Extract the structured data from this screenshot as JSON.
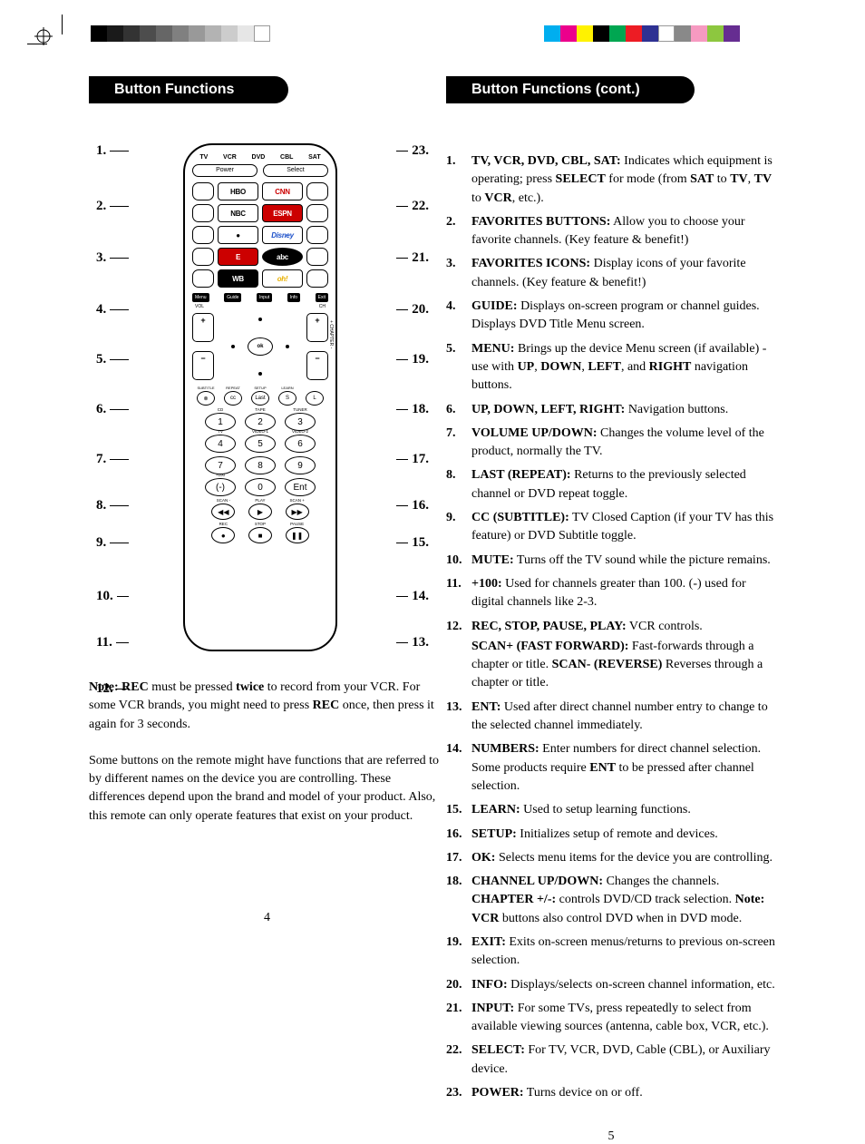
{
  "print": {
    "grayscale_swatches": [
      "#000000",
      "#1a1a1a",
      "#333333",
      "#4d4d4d",
      "#666666",
      "#808080",
      "#999999",
      "#b3b3b3",
      "#cccccc",
      "#e6e6e6",
      "#ffffff"
    ],
    "color_swatches": [
      "#00aeef",
      "#ec008c",
      "#fff200",
      "#000000",
      "#00a651",
      "#ed1c24",
      "#2e3192",
      "#ffffff",
      "#898989",
      "#f69ac1",
      "#8dc73f",
      "#662d91"
    ]
  },
  "left": {
    "header": "Button Functions",
    "page_num": "4",
    "callouts_left": [
      "1.",
      "2.",
      "3.",
      "4.",
      "5.",
      "6.",
      "7.",
      "8.",
      "9.",
      "10.",
      "11.",
      "12."
    ],
    "callout_left_gaps": [
      0,
      44,
      40,
      40,
      38,
      38,
      38,
      34,
      24,
      42,
      34,
      34,
      34
    ],
    "callouts_right": [
      "23.",
      "22.",
      "21.",
      "20.",
      "19.",
      "18.",
      "17.",
      "16.",
      "15.",
      "14.",
      "13."
    ],
    "callout_right_gaps": [
      0,
      44,
      40,
      40,
      38,
      38,
      38,
      34,
      24,
      42,
      34,
      34
    ],
    "remote": {
      "modes": [
        "TV",
        "VCR",
        "DVD",
        "CBL",
        "SAT"
      ],
      "power": "Power",
      "select": "Select",
      "fav_rows": [
        {
          "logo1_text": "HBO",
          "logo1_color": "#000000",
          "logo2_text": "CNN",
          "logo2_color": "#cc0000"
        },
        {
          "logo1_text": "NBC",
          "logo1_color": "#000000",
          "logo2_text": "ESPN",
          "logo2_color": "#cc0000",
          "logo2_bg": "#cc0000",
          "logo2_fg": "#fff"
        },
        {
          "logo1_text": "●",
          "logo1_color": "#000000",
          "logo2_text": "Disney",
          "logo2_color": "#1a4fc9",
          "logo2_style": "italic"
        },
        {
          "logo1_text": "E",
          "logo1_color": "#cc0000",
          "logo1_bg": "#cc0000",
          "logo1_fg": "#fff",
          "logo2_text": "abc",
          "logo2_color": "#fff",
          "logo2_bg": "#000",
          "logo2_round": true
        },
        {
          "logo1_text": "WB",
          "logo1_color": "#000",
          "logo1_bg": "#000",
          "logo1_fg": "#fff",
          "logo2_text": "oh!",
          "logo2_color": "#e8b000",
          "logo2_style": "italic"
        }
      ],
      "func_keys": [
        "Menu",
        "Guide",
        "Input",
        "Info",
        "Exit"
      ],
      "vol_label": "VOL",
      "ch_label": "CH",
      "chapter_label": "+ CHAPTER -",
      "ok": "SELECT ok",
      "small_labels": [
        "SUBTITLE",
        "REPEAT",
        "SETUP",
        "LEARN"
      ],
      "small_keys": [
        "⊗",
        "cc",
        "Last",
        "S",
        "L"
      ],
      "num_labels": [
        "CD",
        "TAPE",
        "TUNER",
        "TV",
        "VIDEO-1",
        "VIDEO-2",
        "",
        "",
        "",
        "+100",
        "",
        ""
      ],
      "numbers": [
        "1",
        "2",
        "3",
        "4",
        "5",
        "6",
        "7",
        "8",
        "9",
        "(-)",
        "0",
        "Ent"
      ],
      "transport_labels": [
        "SCAN -",
        "PLAY",
        "SCAN +",
        "REC",
        "STOP",
        "PAUSE"
      ],
      "transport_syms": [
        "◀◀",
        "▶",
        "▶▶",
        "●",
        "■",
        "❚❚"
      ]
    },
    "note_html": "<span class='b'>Note: REC</span> must be pressed <span class='b'>twice</span> to record from your VCR. For some VCR brands, you might need to press <span class='b'>REC</span> once, then press it again for 3 seconds.",
    "para2": "Some buttons on the remote might have functions that are referred to by different names on the device you are controlling. These differences depend upon the brand and model of your product. Also, this remote can only operate features that exist on your product."
  },
  "right": {
    "header": "Button Functions (cont.)",
    "page_num": "5",
    "items": [
      {
        "n": "1.",
        "html": "<span class='b'>TV, VCR, DVD, CBL, SAT:</span> Indicates which equipment is operating; press <span class='b'>SELECT</span> for mode (from <span class='b'>SAT</span> to <span class='b'>TV</span>, <span class='b'>TV</span> to <span class='b'>VCR</span>, etc.)."
      },
      {
        "n": "2.",
        "html": "<span class='b'>FAVORITES BUTTONS:</span> Allow you to choose your favorite channels. (Key feature & benefit!)"
      },
      {
        "n": "3.",
        "html": "<span class='b'>FAVORITES ICONS:</span> Display icons of your favorite channels. (Key feature & benefit!)"
      },
      {
        "n": "4.",
        "html": "<span class='b'>GUIDE:</span> Displays on-screen program or channel guides. Displays DVD Title Menu screen."
      },
      {
        "n": "5.",
        "html": "<span class='b'>MENU:</span> Brings up the device Menu screen (if available) - use with <span class='b'>UP</span>, <span class='b'>DOWN</span>, <span class='b'>LEFT</span>, and <span class='b'>RIGHT</span> navigation buttons."
      },
      {
        "n": "6.",
        "html": "<span class='b'>UP, DOWN, LEFT, RIGHT:</span> Navigation buttons."
      },
      {
        "n": "7.",
        "html": "<span class='b'>VOLUME UP/DOWN:</span> Changes the volume level of the product, normally the TV."
      },
      {
        "n": "8.",
        "html": "<span class='b'>LAST (REPEAT):</span> Returns to the previously selected channel or DVD repeat toggle."
      },
      {
        "n": "9.",
        "html": "<span class='b'>CC (SUBTITLE):</span> TV Closed Caption (if your TV has this feature) or DVD Subtitle toggle."
      },
      {
        "n": "10.",
        "html": "<span class='b'>MUTE:</span> Turns off the TV sound while the picture remains."
      },
      {
        "n": "11.",
        "html": "<span class='b'>+100:</span> Used for channels greater than 100. (-) used for digital channels like 2-3."
      },
      {
        "n": "12.",
        "html": "<span class='b'>REC, STOP, PAUSE, PLAY:</span> VCR controls.<div class='sub-item'><span class='b'>SCAN+ (FAST FORWARD):</span> Fast-forwards through a chapter or title. <span class='b'>SCAN- (REVERSE)</span> Reverses through a chapter or title.</div>"
      },
      {
        "n": "13.",
        "html": "<span class='b'>ENT:</span> Used after direct channel number entry to change to the selected channel immediately."
      },
      {
        "n": "14.",
        "html": "<span class='b'>NUMBERS:</span> Enter numbers for direct channel selection. Some products require <span class='b'>ENT</span> to be pressed after channel selection."
      },
      {
        "n": "15.",
        "html": "<span class='b'>LEARN:</span> Used to setup learning functions."
      },
      {
        "n": "16.",
        "html": "<span class='b'>SETUP:</span> Initializes setup of remote and devices."
      },
      {
        "n": "17.",
        "html": "<span class='b'>OK:</span> Selects menu items for the device you are controlling."
      },
      {
        "n": "18.",
        "html": "<span class='b'>CHANNEL UP/DOWN:</span> Changes the channels. <span class='b'>CHAPTER +/-:</span> controls DVD/CD track selection. <span class='b'>Note: VCR</span> buttons also control DVD when in DVD mode."
      },
      {
        "n": "19.",
        "html": "<span class='b'>EXIT:</span> Exits on-screen menus/returns to previous on-screen selection."
      },
      {
        "n": "20.",
        "html": "<span class='b'>INFO:</span> Displays/selects on-screen channel information, etc."
      },
      {
        "n": "21.",
        "html": "<span class='b'>INPUT:</span> For some TVs, press repeatedly to select from available viewing sources (antenna, cable box, VCR, etc.)."
      },
      {
        "n": "22.",
        "html": "<span class='b'>SELECT:</span> For TV, VCR, DVD, Cable (CBL), or Auxiliary device."
      },
      {
        "n": "23.",
        "html": "<span class='b'>POWER:</span> Turns device on or off."
      }
    ]
  }
}
